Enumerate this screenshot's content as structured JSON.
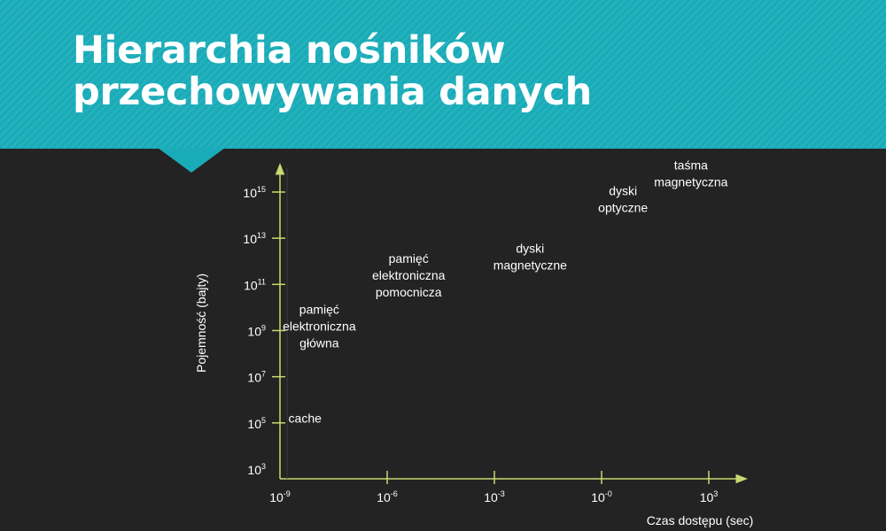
{
  "slide": {
    "title": "Hierarchia nośników przechowywania danych"
  },
  "colors": {
    "header": "#19acb8",
    "background": "#232323",
    "axis": "#c9d96f",
    "text": "#ffffff"
  },
  "chart_data": {
    "type": "scatter",
    "title": "",
    "xlabel": "Czas dostępu (sec)",
    "ylabel": "Pojemność (bajty)",
    "x_scale": "log",
    "y_scale": "log",
    "x_ticks": [
      {
        "exp": -9,
        "label": "10",
        "sup": "-9"
      },
      {
        "exp": -6,
        "label": "10",
        "sup": "-6"
      },
      {
        "exp": -3,
        "label": "10",
        "sup": "-3"
      },
      {
        "exp": 0,
        "label": "10",
        "sup": "-0"
      },
      {
        "exp": 3,
        "label": "10",
        "sup": "3"
      }
    ],
    "y_ticks": [
      {
        "exp": 3,
        "label": "10",
        "sup": "3"
      },
      {
        "exp": 5,
        "label": "10",
        "sup": "5"
      },
      {
        "exp": 7,
        "label": "10",
        "sup": "7"
      },
      {
        "exp": 9,
        "label": "10",
        "sup": "9"
      },
      {
        "exp": 11,
        "label": "10",
        "sup": "11"
      },
      {
        "exp": 13,
        "label": "10",
        "sup": "13"
      },
      {
        "exp": 15,
        "label": "10",
        "sup": "15"
      }
    ],
    "xlim_exp": [
      -9,
      4
    ],
    "ylim_exp": [
      3,
      16
    ],
    "grid": false,
    "points": [
      {
        "name": "cache",
        "lines": [
          "cache"
        ],
        "x_exp": -8.3,
        "y_exp": 5.2
      },
      {
        "name": "pamiec-glowna",
        "lines": [
          "pamięć",
          "elektroniczna",
          "główna"
        ],
        "x_exp": -7.9,
        "y_exp": 9.2
      },
      {
        "name": "pamiec-pomocnicza",
        "lines": [
          "pamięć",
          "elektroniczna",
          "pomocnicza"
        ],
        "x_exp": -5.4,
        "y_exp": 11.4
      },
      {
        "name": "dyski-magnetyczne",
        "lines": [
          "dyski",
          "magnetyczne"
        ],
        "x_exp": -2.0,
        "y_exp": 12.2
      },
      {
        "name": "dyski-optyczne",
        "lines": [
          "dyski",
          "optyczne"
        ],
        "x_exp": 0.6,
        "y_exp": 14.7
      },
      {
        "name": "tasma-magnetyczna",
        "lines": [
          "taśma",
          "magnetyczna"
        ],
        "x_exp": 2.5,
        "y_exp": 15.8
      }
    ]
  }
}
